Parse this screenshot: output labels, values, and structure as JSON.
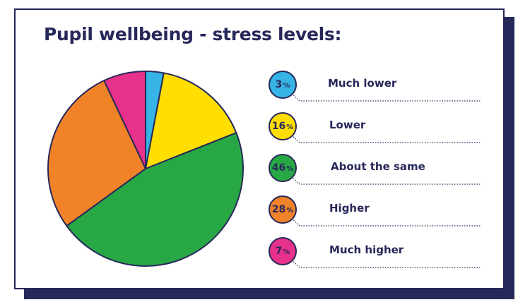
{
  "chart_data": {
    "type": "pie",
    "title": "Pupil wellbeing - stress levels:",
    "categories": [
      "Much lower",
      "Lower",
      "About the same",
      "Higher",
      "Much higher"
    ],
    "values": [
      3,
      16,
      46,
      28,
      7
    ],
    "unit": "%",
    "colors": [
      "#36b4e6",
      "#ffde00",
      "#27a844",
      "#f08228",
      "#e8318a"
    ],
    "stroke_color": "#27285a",
    "legend_position": "right"
  }
}
